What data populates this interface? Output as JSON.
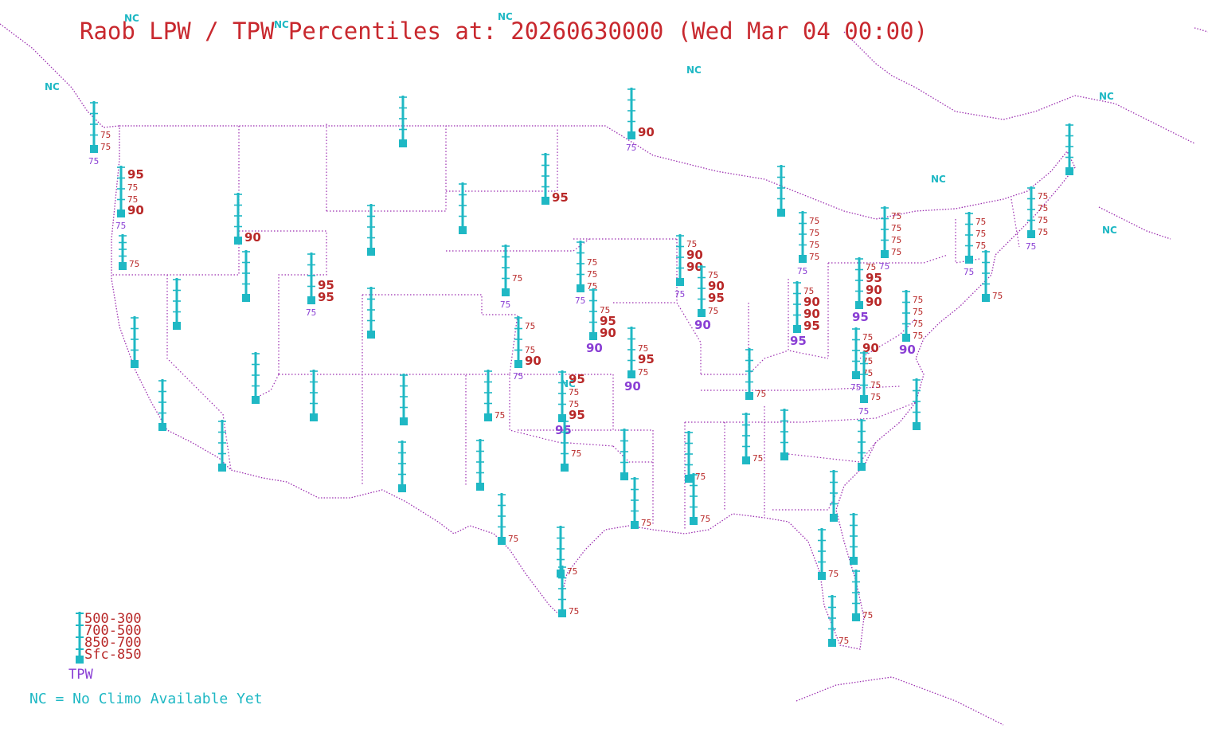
{
  "title": "Raob LPW / TPW Percentiles at: 20260630000 (Wed Mar 04 00:00)",
  "colors": {
    "title": "#c8282e",
    "station": "#1fb8c4",
    "pct": "#b82828",
    "tpw": "#8a3fd4",
    "border": "#9c2fb0"
  },
  "nc_marker_text": "NC",
  "legend": {
    "layers": [
      "500-300",
      "700-500",
      "850-700",
      "Sfc-850"
    ],
    "tpw_label": "TPW",
    "nc_note": "NC = No Climo Available Yet"
  },
  "stations": [
    {
      "id": "s1",
      "labels": [
        "",
        "",
        "75",
        "75"
      ],
      "tpw": "75"
    },
    {
      "id": "s2",
      "labels": [
        "95",
        "75",
        "75",
        "90"
      ],
      "tpw": "75"
    },
    {
      "id": "s3",
      "labels": [
        "",
        "",
        "",
        "75"
      ],
      "tpw": ""
    },
    {
      "id": "s4",
      "labels": [
        "",
        "",
        "",
        "90"
      ],
      "tpw": ""
    },
    {
      "id": "s5",
      "labels": [
        "",
        "",
        "",
        ""
      ],
      "tpw": ""
    },
    {
      "id": "s6",
      "labels": [
        "",
        "",
        "",
        ""
      ],
      "tpw": ""
    },
    {
      "id": "s7",
      "labels": [
        "",
        "",
        "",
        ""
      ],
      "tpw": ""
    },
    {
      "id": "s8",
      "labels": [
        "",
        "",
        "95",
        "95"
      ],
      "tpw": "75"
    },
    {
      "id": "s9",
      "labels": [
        "",
        "",
        "",
        ""
      ],
      "tpw": ""
    },
    {
      "id": "s10",
      "labels": [
        "",
        "",
        "",
        ""
      ],
      "tpw": ""
    },
    {
      "id": "s11",
      "labels": [
        "",
        "",
        "",
        ""
      ],
      "tpw": ""
    },
    {
      "id": "s12",
      "labels": [
        "",
        "",
        "",
        ""
      ],
      "tpw": ""
    },
    {
      "id": "s13",
      "labels": [
        "",
        "",
        "",
        ""
      ],
      "tpw": ""
    },
    {
      "id": "s14",
      "labels": [
        "",
        "",
        "",
        ""
      ],
      "tpw": ""
    },
    {
      "id": "s15",
      "labels": [
        "",
        "",
        "",
        ""
      ],
      "tpw": ""
    },
    {
      "id": "s16",
      "labels": [
        "",
        "",
        "",
        ""
      ],
      "tpw": ""
    },
    {
      "id": "s17",
      "labels": [
        "",
        "",
        "",
        ""
      ],
      "tpw": ""
    },
    {
      "id": "s18",
      "labels": [
        "",
        "",
        "",
        ""
      ],
      "tpw": ""
    },
    {
      "id": "s19",
      "labels": [
        "",
        "",
        "",
        ""
      ],
      "tpw": ""
    },
    {
      "id": "s20",
      "labels": [
        "",
        "",
        "",
        "95"
      ],
      "tpw": ""
    },
    {
      "id": "s21",
      "labels": [
        "",
        "",
        "",
        "90"
      ],
      "tpw": "75"
    },
    {
      "id": "s22",
      "labels": [
        "",
        "",
        "75",
        ""
      ],
      "tpw": "75"
    },
    {
      "id": "s23",
      "labels": [
        "",
        "75",
        "75",
        "75"
      ],
      "tpw": "75"
    },
    {
      "id": "s24",
      "labels": [
        "75",
        "",
        "75",
        "90"
      ],
      "tpw": "75"
    },
    {
      "id": "s25",
      "labels": [
        "",
        "75",
        "95",
        "90"
      ],
      "tpw": "90"
    },
    {
      "id": "s26",
      "labels": [
        "",
        "",
        "",
        "75"
      ],
      "tpw": ""
    },
    {
      "id": "s27",
      "labels": [
        "",
        "",
        "",
        "75"
      ],
      "tpw": ""
    },
    {
      "id": "s28",
      "labels": [
        "95",
        "75",
        "75",
        "95"
      ],
      "tpw": "95"
    },
    {
      "id": "s29",
      "labels": [
        "",
        "",
        "75",
        ""
      ],
      "tpw": ""
    },
    {
      "id": "s30",
      "labels": [
        "",
        "75",
        "95",
        "75"
      ],
      "tpw": "90"
    },
    {
      "id": "s31",
      "labels": [
        "",
        "",
        "",
        ""
      ],
      "tpw": ""
    },
    {
      "id": "s32",
      "labels": [
        "",
        "",
        "",
        "75"
      ],
      "tpw": ""
    },
    {
      "id": "s33",
      "labels": [
        "",
        "",
        "",
        "75"
      ],
      "tpw": ""
    },
    {
      "id": "s34",
      "labels": [
        "75",
        "90",
        "90",
        ""
      ],
      "tpw": "75"
    },
    {
      "id": "s35",
      "labels": [
        "75",
        "90",
        "95",
        "75"
      ],
      "tpw": "90"
    },
    {
      "id": "s36",
      "labels": [
        "",
        "",
        "",
        "75"
      ],
      "tpw": ""
    },
    {
      "id": "s37",
      "labels": [
        "",
        "",
        "",
        "75"
      ],
      "tpw": ""
    },
    {
      "id": "s38",
      "labels": [
        "",
        "",
        "",
        ""
      ],
      "tpw": ""
    },
    {
      "id": "s39",
      "labels": [
        "",
        "",
        "",
        ""
      ],
      "tpw": ""
    },
    {
      "id": "s40",
      "labels": [
        "75",
        "75",
        "75",
        "75"
      ],
      "tpw": "75"
    },
    {
      "id": "s41",
      "labels": [
        "75",
        "90",
        "90",
        "95"
      ],
      "tpw": "95"
    },
    {
      "id": "s42",
      "labels": [
        "75",
        "90",
        "75",
        "75"
      ],
      "tpw": "75"
    },
    {
      "id": "s43",
      "labels": [
        "75",
        "95",
        "90",
        "90"
      ],
      "tpw": "95"
    },
    {
      "id": "s44",
      "labels": [
        "",
        "",
        "75",
        "75"
      ],
      "tpw": "75"
    },
    {
      "id": "s45",
      "labels": [
        "",
        "",
        "",
        "75"
      ],
      "tpw": ""
    },
    {
      "id": "s46",
      "labels": [
        "75",
        "75",
        "75",
        "75"
      ],
      "tpw": "90"
    },
    {
      "id": "s47",
      "labels": [
        "",
        "",
        "",
        ""
      ],
      "tpw": ""
    },
    {
      "id": "s48",
      "labels": [
        "",
        "",
        "",
        ""
      ],
      "tpw": ""
    },
    {
      "id": "s49",
      "labels": [
        "75",
        "75",
        "75",
        "75"
      ],
      "tpw": "75"
    },
    {
      "id": "s50",
      "labels": [
        "75",
        "75",
        "75",
        ""
      ],
      "tpw": "75"
    },
    {
      "id": "s51",
      "labels": [
        "75",
        "75",
        "75",
        "75"
      ],
      "tpw": "75"
    },
    {
      "id": "s52",
      "labels": [
        "",
        "",
        "",
        ""
      ],
      "tpw": ""
    },
    {
      "id": "s53",
      "labels": [
        "",
        "",
        "",
        ""
      ],
      "tpw": ""
    },
    {
      "id": "s54",
      "labels": [
        "",
        "",
        "",
        "75"
      ],
      "tpw": ""
    },
    {
      "id": "s55",
      "labels": [
        "",
        "",
        "",
        ""
      ],
      "tpw": ""
    },
    {
      "id": "s56",
      "labels": [
        "",
        "",
        "",
        "75"
      ],
      "tpw": ""
    },
    {
      "id": "s57",
      "labels": [
        "",
        "",
        "",
        "75"
      ],
      "tpw": ""
    },
    {
      "id": "s58",
      "labels": [
        "",
        "",
        "",
        "75"
      ],
      "tpw": ""
    },
    {
      "id": "s59",
      "labels": [
        "",
        "",
        "",
        "75"
      ],
      "tpw": ""
    },
    {
      "id": "s60",
      "labels": [
        "",
        "",
        "",
        "75"
      ],
      "tpw": ""
    }
  ]
}
